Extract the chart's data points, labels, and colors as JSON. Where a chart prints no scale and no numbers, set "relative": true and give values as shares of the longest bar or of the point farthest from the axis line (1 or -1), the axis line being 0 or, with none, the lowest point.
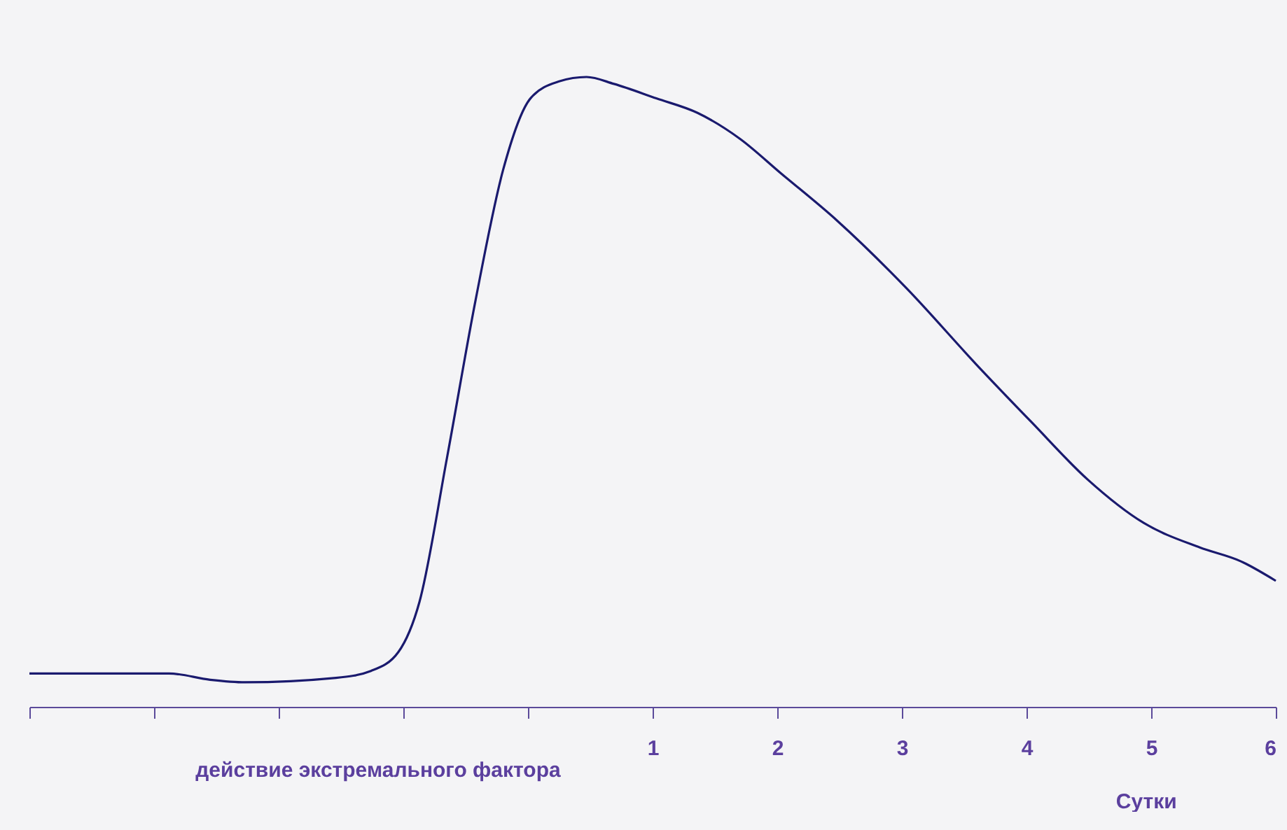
{
  "chart_data": {
    "type": "line",
    "relative": true,
    "xlabel": "Сутки",
    "annotations": [
      "действие экстремального фактора"
    ],
    "x": [
      -4,
      -2.88,
      -2.55,
      -2.27,
      -1.54,
      -1.26,
      -1.04,
      -0.87,
      -0.65,
      -0.42,
      -0.2,
      0.02,
      0.25,
      0.47,
      0.69,
      1.03,
      1.36,
      1.7,
      2.03,
      2.48,
      3.04,
      3.6,
      4.04,
      4.49,
      4.94,
      5.39,
      5.72,
      6
    ],
    "series": [
      {
        "color": "#1a1a6e",
        "values": [
          0.053,
          0.053,
          0.043,
          0.039,
          0.046,
          0.057,
          0.087,
          0.167,
          0.395,
          0.646,
          0.852,
          0.966,
          0.993,
          1,
          0.989,
          0.966,
          0.943,
          0.902,
          0.847,
          0.772,
          0.664,
          0.543,
          0.452,
          0.361,
          0.292,
          0.253,
          0.231,
          0.2
        ]
      }
    ],
    "xlim": [
      -4,
      6
    ],
    "xticks": [
      {
        "value": -4,
        "label": null
      },
      {
        "value": -3,
        "label": null
      },
      {
        "value": -2,
        "label": null
      },
      {
        "value": -1,
        "label": null
      },
      {
        "value": 0,
        "label": null
      },
      1,
      2,
      3,
      4,
      5,
      6
    ],
    "grid": false,
    "line_style": "solid",
    "marker": "none"
  }
}
